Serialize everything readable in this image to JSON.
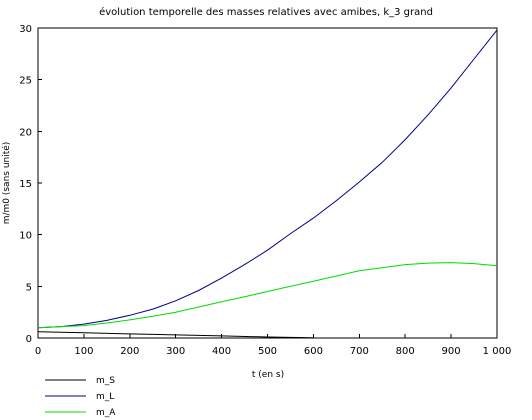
{
  "chart_data": {
    "type": "line",
    "title": "évolution temporelle des masses relatives avec amibes, k_3 grand",
    "xlabel": "t (en s)",
    "ylabel": "m/m0 (sans unité)",
    "xlim": [
      0,
      1000
    ],
    "ylim": [
      0,
      30
    ],
    "x_ticks": [
      0,
      100,
      200,
      300,
      400,
      500,
      600,
      700,
      800,
      900,
      1000
    ],
    "x_tick_labels": [
      "0",
      "100",
      "200",
      "300",
      "400",
      "500",
      "600",
      "700",
      "800",
      "900",
      "1 000"
    ],
    "y_ticks": [
      0,
      5,
      10,
      15,
      20,
      25,
      30
    ],
    "y_tick_labels": [
      "0",
      "5",
      "10",
      "15",
      "20",
      "25",
      "30"
    ],
    "grid": false,
    "legend_position": "bottom-left",
    "series": [
      {
        "name": "m_S",
        "color": "#000000",
        "x": [
          0,
          100,
          200,
          300,
          400,
          500,
          600
        ],
        "y": [
          0.6,
          0.5,
          0.4,
          0.3,
          0.2,
          0.1,
          0.03
        ]
      },
      {
        "name": "m_L",
        "color": "#00008b",
        "x": [
          0,
          50,
          100,
          150,
          200,
          250,
          300,
          350,
          400,
          450,
          500,
          550,
          600,
          650,
          700,
          750,
          800,
          850,
          900,
          950,
          1000
        ],
        "y": [
          1.0,
          1.1,
          1.35,
          1.7,
          2.2,
          2.8,
          3.6,
          4.6,
          5.8,
          7.1,
          8.5,
          10.1,
          11.6,
          13.3,
          15.1,
          17.0,
          19.2,
          21.6,
          24.2,
          27.0,
          29.8
        ]
      },
      {
        "name": "m_A",
        "color": "#00dd00",
        "x": [
          0,
          50,
          100,
          150,
          200,
          250,
          300,
          350,
          400,
          450,
          500,
          550,
          600,
          650,
          700,
          750,
          800,
          850,
          900,
          950,
          1000
        ],
        "y": [
          1.0,
          1.1,
          1.2,
          1.45,
          1.75,
          2.1,
          2.5,
          3.0,
          3.5,
          4.0,
          4.5,
          5.0,
          5.5,
          6.0,
          6.5,
          6.8,
          7.1,
          7.25,
          7.3,
          7.2,
          7.0
        ]
      }
    ]
  }
}
